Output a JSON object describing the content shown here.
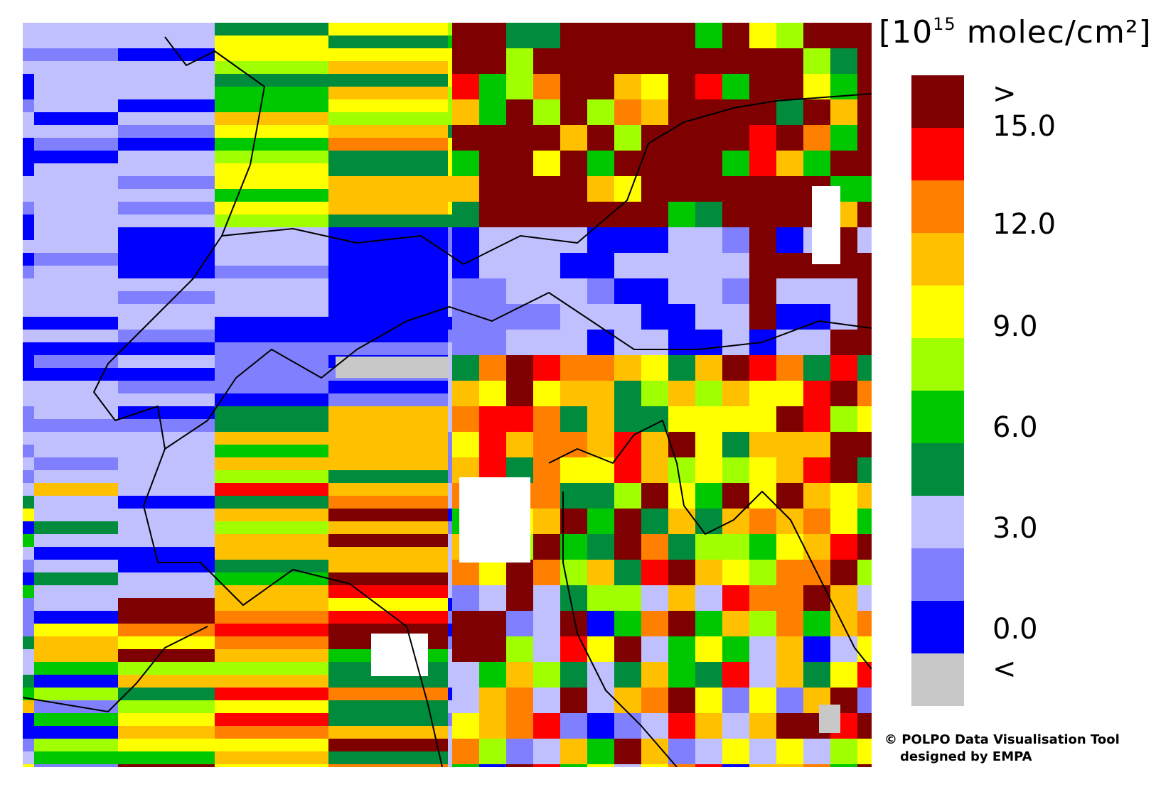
{
  "legend": {
    "unit_prefix": "[10",
    "unit_exponent": "15",
    "unit_suffix": "molec/cm²]",
    "colors": [
      "#7f0000",
      "#ff0000",
      "#ff8000",
      "#ffc000",
      "#ffff00",
      "#a0ff00",
      "#00c800",
      "#008c3c",
      "#c0c0ff",
      "#8080ff",
      "#0000ff",
      "#c8c8c8"
    ],
    "ticks": {
      "gt": ">",
      "t15": "15.0",
      "t12": "12.0",
      "t9": "9.0",
      "t6": "6.0",
      "t3": "3.0",
      "t0": "0.0",
      "lt": "<"
    }
  },
  "credit": {
    "line1": "© POLPO Data Visualisation Tool",
    "line2": "designed by EMPA"
  },
  "map": {
    "boundary_color": "#000000",
    "no_data_color": "#ffffff"
  }
}
